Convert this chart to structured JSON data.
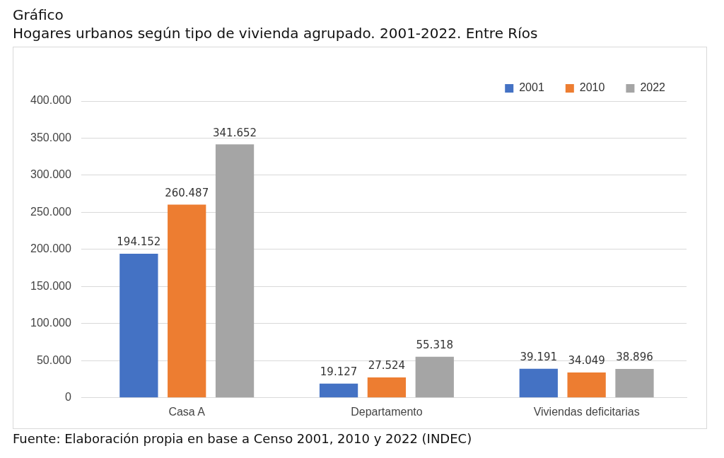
{
  "chart_data": {
    "type": "bar",
    "title": "Gráfico",
    "subtitle": "Hogares urbanos según tipo de vivienda agrupado. 2001-2022. Entre Ríos",
    "categories": [
      "Casa A",
      "Departamento",
      "Viviendas deficitarias"
    ],
    "series": [
      {
        "name": "2001",
        "color": "#4472c4",
        "values": [
          194152,
          19127,
          39191
        ],
        "value_labels": [
          "194.152",
          "19.127",
          "39.191"
        ]
      },
      {
        "name": "2010",
        "color": "#ed7d31",
        "values": [
          260487,
          27524,
          34049
        ],
        "value_labels": [
          "260.487",
          "27.524",
          "34.049"
        ]
      },
      {
        "name": "2022",
        "color": "#a5a5a5",
        "values": [
          341652,
          55318,
          38896
        ],
        "value_labels": [
          "341.652",
          "55.318",
          "38.896"
        ]
      }
    ],
    "ylim": [
      0,
      400000
    ],
    "yticks": [
      {
        "value": 0,
        "label": "0"
      },
      {
        "value": 50000,
        "label": "50.000"
      },
      {
        "value": 100000,
        "label": "100.000"
      },
      {
        "value": 150000,
        "label": "150.000"
      },
      {
        "value": 200000,
        "label": "200.000"
      },
      {
        "value": 250000,
        "label": "250.000"
      },
      {
        "value": 300000,
        "label": "300.000"
      },
      {
        "value": 350000,
        "label": "350.000"
      },
      {
        "value": 400000,
        "label": "400.000"
      }
    ],
    "grid": "y",
    "legend": "top right",
    "annotations": [
      "Fuente: Elaboración propia en base a Censo 2001, 2010 y 2022 (INDEC)"
    ]
  }
}
